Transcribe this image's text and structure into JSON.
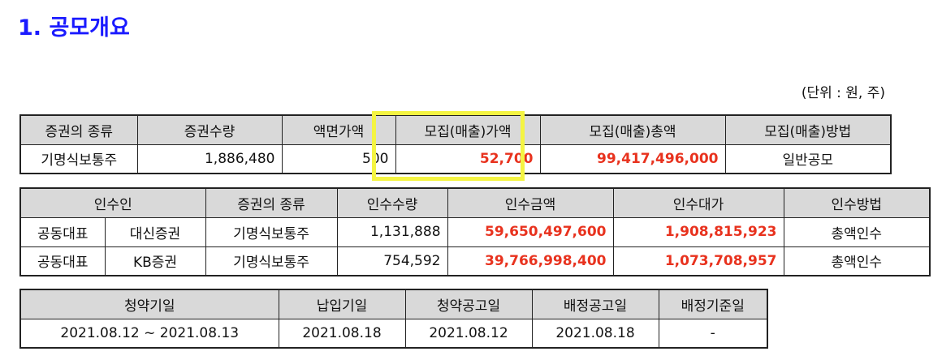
{
  "title": "1. 공모개요",
  "unit_note": "(단위 : 원, 주)",
  "offering": {
    "headers": [
      "증권의 종류",
      "증권수량",
      "액면가액",
      "모집(매출)가액",
      "모집(매출)총액",
      "모집(매출)방법"
    ],
    "row": [
      "기명식보통주",
      "1,886,480",
      "500",
      "52,700",
      "99,417,496,000",
      "일반공모"
    ]
  },
  "underwriting": {
    "headers": [
      "인수인",
      "증권의 종류",
      "인수수량",
      "인수금액",
      "인수대가",
      "인수방법"
    ],
    "rows": [
      [
        "공동대표",
        "대신증권",
        "기명식보통주",
        "1,131,888",
        "59,650,497,600",
        "1,908,815,923",
        "총액인수"
      ],
      [
        "공동대표",
        "KB증권",
        "기명식보통주",
        "754,592",
        "39,766,998,400",
        "1,073,708,957",
        "총액인수"
      ]
    ]
  },
  "schedule": {
    "headers": [
      "청약기일",
      "납입기일",
      "청약공고일",
      "배정공고일",
      "배정기준일"
    ],
    "row": [
      "2021.08.12 ~ 2021.08.13",
      "2021.08.18",
      "2021.08.12",
      "2021.08.18",
      "-"
    ]
  },
  "colors": {
    "title": "#1a1aff",
    "highlight_amount": "#e8321e",
    "header_bg": "#d9d9d9",
    "callout_box": "#f4f442"
  }
}
